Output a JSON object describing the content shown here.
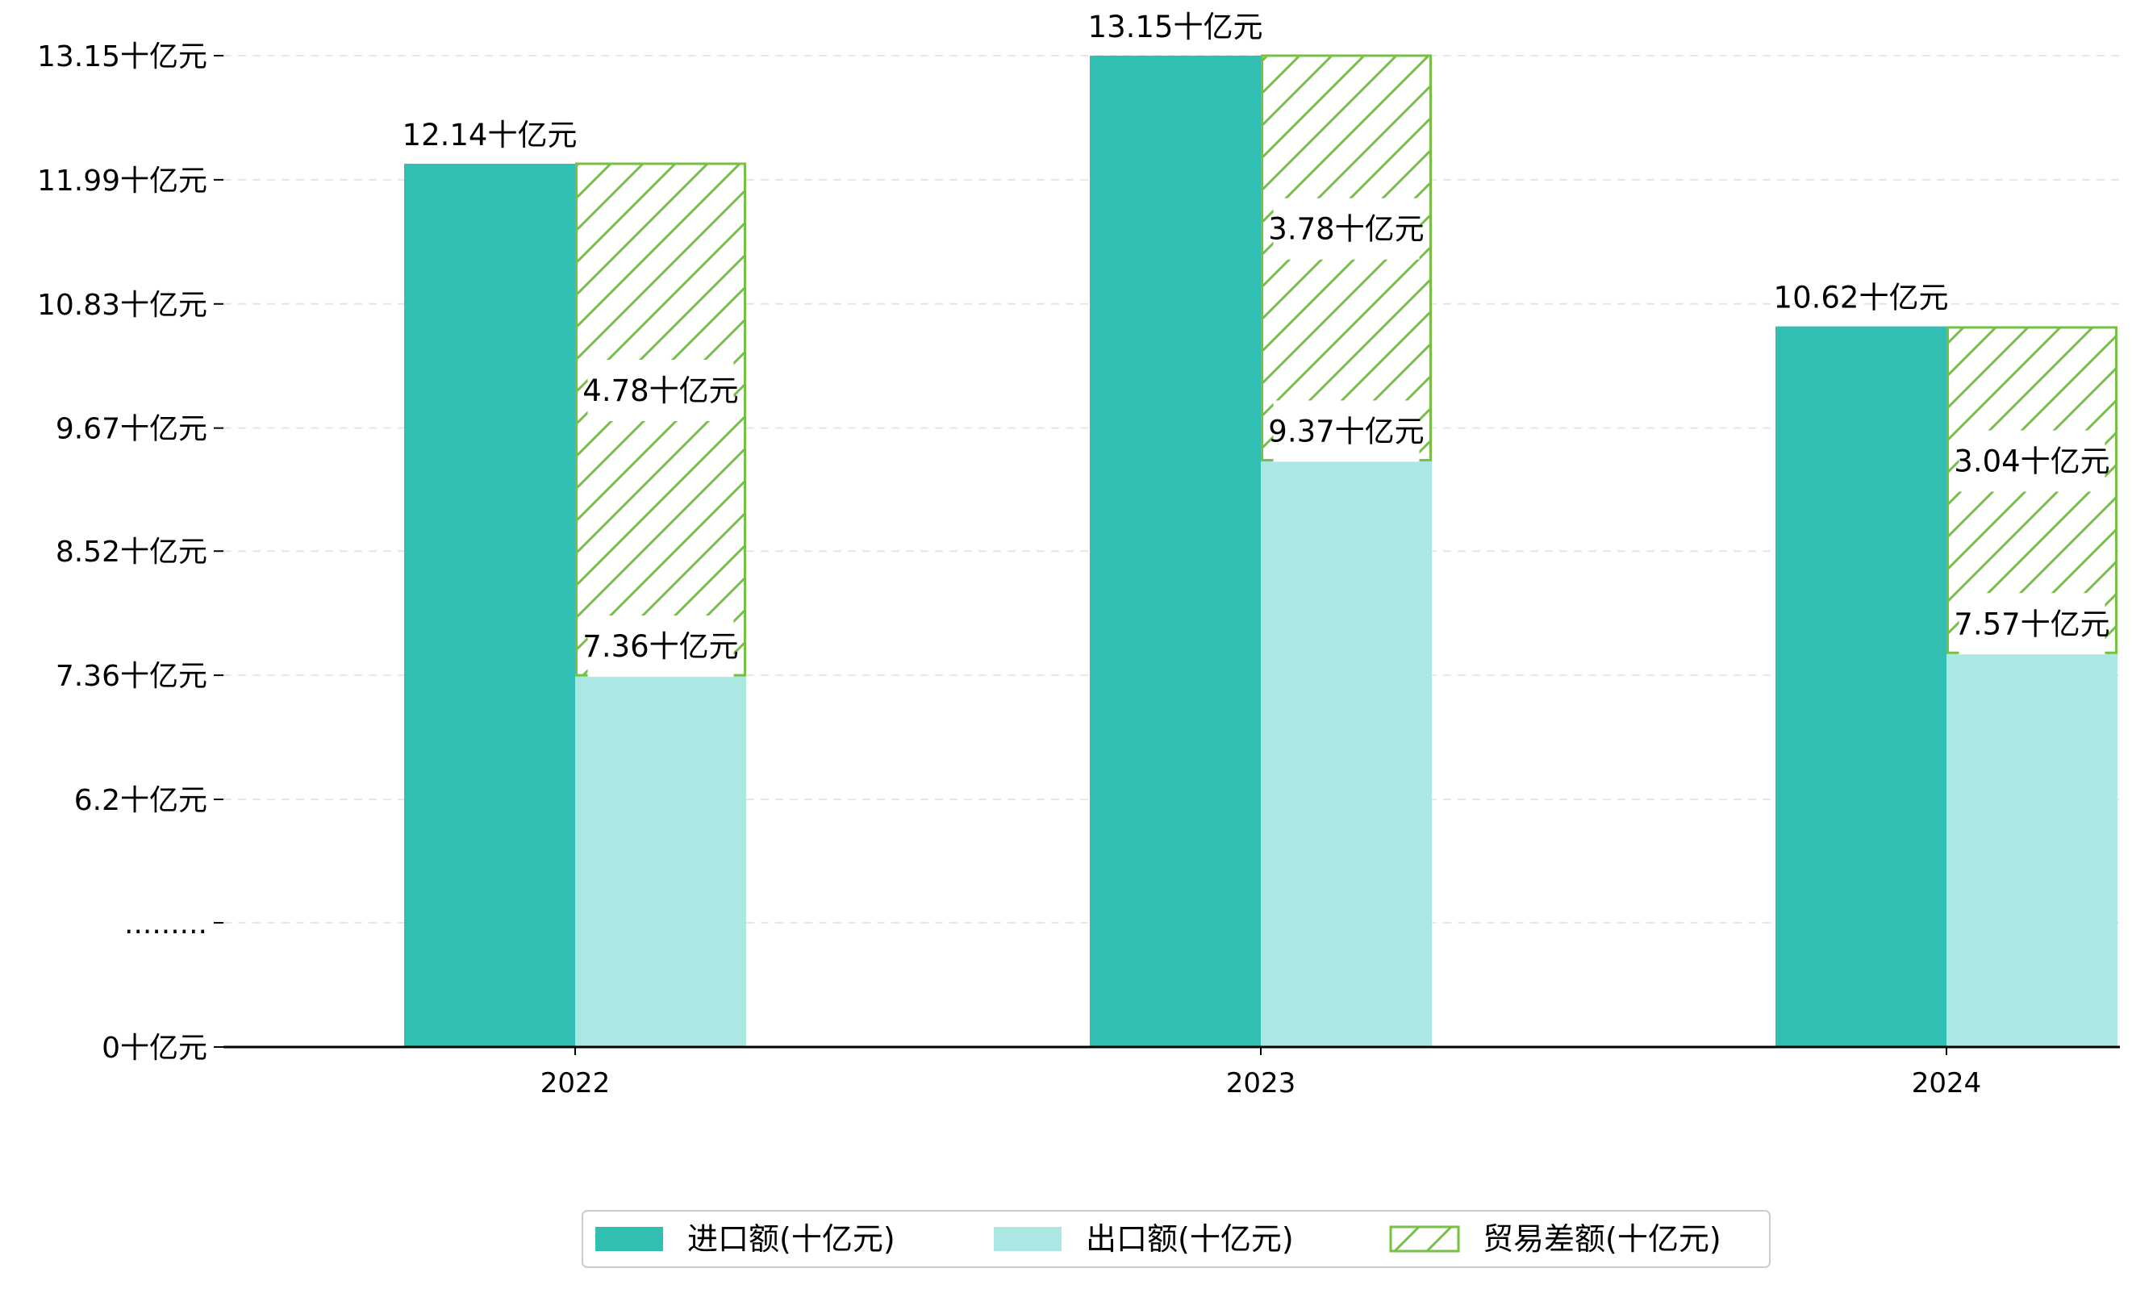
{
  "chart_data": {
    "type": "bar",
    "categories": [
      "2022",
      "2023",
      "2024"
    ],
    "series": [
      {
        "name": "进口额(十亿元)",
        "values": [
          12.14,
          13.15,
          10.62
        ],
        "color": "#30bfb2"
      },
      {
        "name": "出口额(十亿元)",
        "values": [
          7.36,
          9.37,
          7.57
        ],
        "color": "#abe8e3"
      },
      {
        "name": "贸易差额(十亿元)",
        "values": [
          4.78,
          3.78,
          3.04
        ],
        "color": "#76c043",
        "pattern": "hatch",
        "stacked_on": "出口额(十亿元)"
      }
    ],
    "value_labels": {
      "import": [
        "12.14十亿元",
        "13.15十亿元",
        "10.62十亿元"
      ],
      "export": [
        "7.36十亿元",
        "9.37十亿元",
        "7.57十亿元"
      ],
      "balance": [
        "4.78十亿元",
        "3.78十亿元",
        "3.04十亿元"
      ]
    },
    "yaxis": {
      "broken": true,
      "break_label": ".........",
      "ticks": [
        {
          "label": "0十亿元",
          "value": 0
        },
        {
          "label": ".........",
          "value": null
        },
        {
          "label": "6.2十亿元",
          "value": 6.2
        },
        {
          "label": "7.36十亿元",
          "value": 7.36
        },
        {
          "label": "8.52十亿元",
          "value": 8.52
        },
        {
          "label": "9.67十亿元",
          "value": 9.67
        },
        {
          "label": "10.83十亿元",
          "value": 10.83
        },
        {
          "label": "11.99十亿元",
          "value": 11.99
        },
        {
          "label": "13.15十亿元",
          "value": 13.15
        }
      ]
    },
    "grid": true,
    "legend_position": "bottom-center"
  }
}
